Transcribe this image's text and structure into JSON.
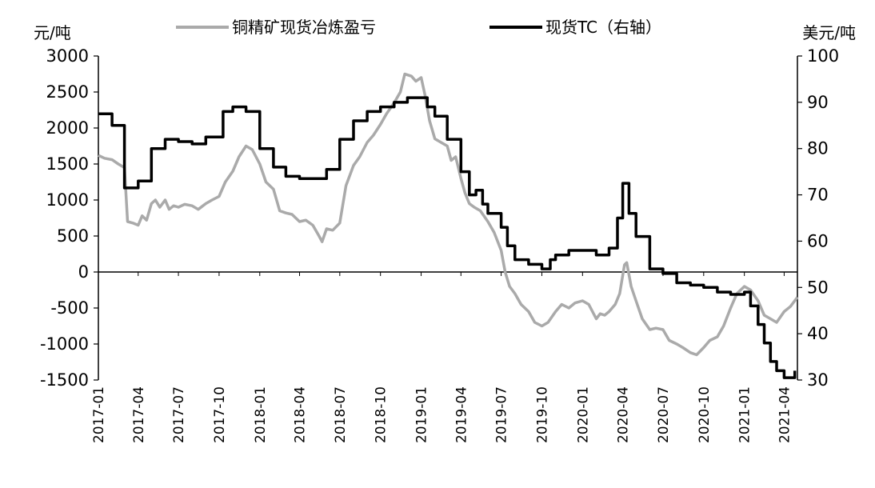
{
  "chart_data": {
    "type": "line",
    "left_axis_unit": "元/吨",
    "right_axis_unit": "美元/吨",
    "y_left_ticks": [
      "3000",
      "2500",
      "2000",
      "1500",
      "1000",
      "500",
      "0",
      "-500",
      "-1000",
      "-1500"
    ],
    "y_right_ticks": [
      "100",
      "90",
      "80",
      "70",
      "60",
      "50",
      "40",
      "30"
    ],
    "ylim_left": [
      -1500,
      3000
    ],
    "ylim_right": [
      30,
      100
    ],
    "x_range": [
      "2017-01",
      "2021-05"
    ],
    "x_ticks": [
      "2017-01",
      "2017-04",
      "2017-07",
      "2017-10",
      "2018-01",
      "2018-04",
      "2018-07",
      "2018-10",
      "2019-01",
      "2019-04",
      "2019-07",
      "2019-10",
      "2020-01",
      "2020-04",
      "2020-07",
      "2020-10",
      "2021-01",
      "2021-04"
    ],
    "legend_position": "top",
    "grid": false,
    "series": [
      {
        "name": "铜精矿现货冶炼盈亏",
        "axis": "left",
        "color": "#aaaaaa",
        "points": [
          [
            "2017-01-01",
            1620
          ],
          [
            "2017-01-15",
            1580
          ],
          [
            "2017-02-01",
            1560
          ],
          [
            "2017-02-15",
            1500
          ],
          [
            "2017-03-01",
            1450
          ],
          [
            "2017-03-08",
            700
          ],
          [
            "2017-03-20",
            680
          ],
          [
            "2017-04-01",
            650
          ],
          [
            "2017-04-10",
            780
          ],
          [
            "2017-04-20",
            720
          ],
          [
            "2017-05-01",
            950
          ],
          [
            "2017-05-10",
            1000
          ],
          [
            "2017-05-20",
            900
          ],
          [
            "2017-06-01",
            1000
          ],
          [
            "2017-06-10",
            870
          ],
          [
            "2017-06-20",
            920
          ],
          [
            "2017-07-01",
            900
          ],
          [
            "2017-07-15",
            940
          ],
          [
            "2017-08-01",
            920
          ],
          [
            "2017-08-15",
            870
          ],
          [
            "2017-09-01",
            950
          ],
          [
            "2017-09-15",
            1000
          ],
          [
            "2017-10-01",
            1050
          ],
          [
            "2017-10-15",
            1250
          ],
          [
            "2017-11-01",
            1400
          ],
          [
            "2017-11-15",
            1600
          ],
          [
            "2017-12-01",
            1750
          ],
          [
            "2017-12-15",
            1700
          ],
          [
            "2018-01-01",
            1500
          ],
          [
            "2018-01-15",
            1250
          ],
          [
            "2018-02-01",
            1150
          ],
          [
            "2018-02-15",
            850
          ],
          [
            "2018-03-01",
            820
          ],
          [
            "2018-03-15",
            800
          ],
          [
            "2018-04-01",
            700
          ],
          [
            "2018-04-15",
            720
          ],
          [
            "2018-05-01",
            650
          ],
          [
            "2018-05-15",
            500
          ],
          [
            "2018-05-22",
            420
          ],
          [
            "2018-06-01",
            600
          ],
          [
            "2018-06-15",
            580
          ],
          [
            "2018-07-01",
            680
          ],
          [
            "2018-07-15",
            1200
          ],
          [
            "2018-08-01",
            1480
          ],
          [
            "2018-08-15",
            1600
          ],
          [
            "2018-09-01",
            1800
          ],
          [
            "2018-09-15",
            1900
          ],
          [
            "2018-10-01",
            2050
          ],
          [
            "2018-10-15",
            2200
          ],
          [
            "2018-11-01",
            2350
          ],
          [
            "2018-11-15",
            2500
          ],
          [
            "2018-11-25",
            2750
          ],
          [
            "2018-12-10",
            2720
          ],
          [
            "2018-12-20",
            2650
          ],
          [
            "2019-01-01",
            2700
          ],
          [
            "2019-01-10",
            2450
          ],
          [
            "2019-01-20",
            2100
          ],
          [
            "2019-02-01",
            1850
          ],
          [
            "2019-02-15",
            1800
          ],
          [
            "2019-03-01",
            1750
          ],
          [
            "2019-03-10",
            1550
          ],
          [
            "2019-03-20",
            1600
          ],
          [
            "2019-04-01",
            1300
          ],
          [
            "2019-04-10",
            1100
          ],
          [
            "2019-04-20",
            950
          ],
          [
            "2019-05-01",
            900
          ],
          [
            "2019-05-15",
            850
          ],
          [
            "2019-06-01",
            700
          ],
          [
            "2019-06-15",
            550
          ],
          [
            "2019-07-01",
            300
          ],
          [
            "2019-07-10",
            0
          ],
          [
            "2019-07-20",
            -200
          ],
          [
            "2019-08-01",
            -300
          ],
          [
            "2019-08-15",
            -450
          ],
          [
            "2019-09-01",
            -550
          ],
          [
            "2019-09-15",
            -700
          ],
          [
            "2019-10-01",
            -750
          ],
          [
            "2019-10-15",
            -700
          ],
          [
            "2019-11-01",
            -550
          ],
          [
            "2019-11-15",
            -450
          ],
          [
            "2019-12-01",
            -500
          ],
          [
            "2019-12-15",
            -430
          ],
          [
            "2020-01-01",
            -400
          ],
          [
            "2020-01-15",
            -450
          ],
          [
            "2020-02-01",
            -650
          ],
          [
            "2020-02-10",
            -580
          ],
          [
            "2020-02-20",
            -600
          ],
          [
            "2020-03-01",
            -550
          ],
          [
            "2020-03-15",
            -450
          ],
          [
            "2020-03-25",
            -300
          ],
          [
            "2020-04-05",
            100
          ],
          [
            "2020-04-10",
            130
          ],
          [
            "2020-04-20",
            -200
          ],
          [
            "2020-05-01",
            -400
          ],
          [
            "2020-05-15",
            -650
          ],
          [
            "2020-06-01",
            -800
          ],
          [
            "2020-06-15",
            -780
          ],
          [
            "2020-07-01",
            -800
          ],
          [
            "2020-07-15",
            -950
          ],
          [
            "2020-08-01",
            -1000
          ],
          [
            "2020-08-15",
            -1050
          ],
          [
            "2020-09-01",
            -1120
          ],
          [
            "2020-09-15",
            -1150
          ],
          [
            "2020-10-01",
            -1050
          ],
          [
            "2020-10-15",
            -950
          ],
          [
            "2020-11-01",
            -900
          ],
          [
            "2020-11-15",
            -750
          ],
          [
            "2020-12-01",
            -500
          ],
          [
            "2020-12-15",
            -300
          ],
          [
            "2021-01-01",
            -200
          ],
          [
            "2021-01-15",
            -250
          ],
          [
            "2021-02-01",
            -400
          ],
          [
            "2021-02-15",
            -600
          ],
          [
            "2021-03-01",
            -650
          ],
          [
            "2021-03-15",
            -700
          ],
          [
            "2021-04-01",
            -550
          ],
          [
            "2021-04-15",
            -480
          ],
          [
            "2021-05-01",
            -350
          ]
        ]
      },
      {
        "name": "现货TC（右轴）",
        "axis": "right",
        "color": "#000000",
        "step": true,
        "points": [
          [
            "2017-01-01",
            87.5
          ],
          [
            "2017-02-01",
            85
          ],
          [
            "2017-03-01",
            71.5
          ],
          [
            "2017-04-01",
            73
          ],
          [
            "2017-05-01",
            80
          ],
          [
            "2017-06-01",
            82
          ],
          [
            "2017-07-01",
            81.5
          ],
          [
            "2017-08-01",
            81
          ],
          [
            "2017-09-01",
            82.5
          ],
          [
            "2017-10-10",
            88
          ],
          [
            "2017-11-01",
            89
          ],
          [
            "2017-12-01",
            88
          ],
          [
            "2018-01-01",
            80
          ],
          [
            "2018-02-01",
            76
          ],
          [
            "2018-03-01",
            74
          ],
          [
            "2018-04-01",
            73.5
          ],
          [
            "2018-05-01",
            73.5
          ],
          [
            "2018-06-01",
            75.5
          ],
          [
            "2018-07-01",
            82
          ],
          [
            "2018-08-01",
            86
          ],
          [
            "2018-09-01",
            88
          ],
          [
            "2018-10-01",
            89
          ],
          [
            "2018-11-01",
            90
          ],
          [
            "2018-12-01",
            91
          ],
          [
            "2019-01-01",
            91
          ],
          [
            "2019-01-15",
            89
          ],
          [
            "2019-02-01",
            87
          ],
          [
            "2019-03-01",
            82
          ],
          [
            "2019-04-01",
            75
          ],
          [
            "2019-04-20",
            70
          ],
          [
            "2019-05-05",
            71
          ],
          [
            "2019-05-20",
            68
          ],
          [
            "2019-06-01",
            66
          ],
          [
            "2019-07-01",
            63
          ],
          [
            "2019-07-15",
            59
          ],
          [
            "2019-08-01",
            56
          ],
          [
            "2019-09-01",
            55
          ],
          [
            "2019-10-01",
            54
          ],
          [
            "2019-10-20",
            56
          ],
          [
            "2019-11-01",
            57
          ],
          [
            "2019-12-01",
            58
          ],
          [
            "2020-01-01",
            58
          ],
          [
            "2020-02-01",
            57
          ],
          [
            "2020-03-01",
            58.5
          ],
          [
            "2020-03-20",
            65
          ],
          [
            "2020-04-01",
            72.5
          ],
          [
            "2020-04-15",
            66
          ],
          [
            "2020-05-01",
            61
          ],
          [
            "2020-06-01",
            54
          ],
          [
            "2020-07-01",
            53
          ],
          [
            "2020-08-01",
            51
          ],
          [
            "2020-09-01",
            50.5
          ],
          [
            "2020-10-01",
            50
          ],
          [
            "2020-11-01",
            49
          ],
          [
            "2020-12-01",
            48.5
          ],
          [
            "2021-01-01",
            49
          ],
          [
            "2021-01-15",
            46
          ],
          [
            "2021-02-01",
            42
          ],
          [
            "2021-02-15",
            38
          ],
          [
            "2021-03-01",
            34
          ],
          [
            "2021-03-15",
            32
          ],
          [
            "2021-04-01",
            30.5
          ],
          [
            "2021-04-25",
            32
          ]
        ]
      }
    ]
  }
}
